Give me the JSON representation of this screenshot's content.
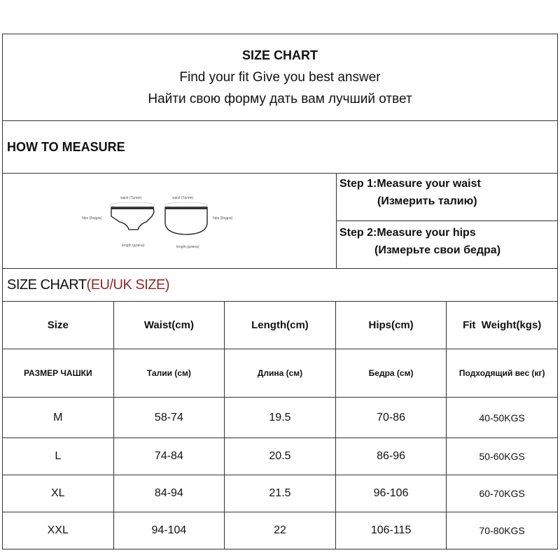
{
  "header": {
    "title": "SIZE CHART",
    "subtitle_en": "Find your fit Give you best answer",
    "subtitle_ru": "Найти свою форму дать вам лучший ответ"
  },
  "how_to_measure": {
    "title": "HOW TO MEASURE",
    "diagram_labels": {
      "waist": "waist (Талия)",
      "hips": "hips (Бедра)",
      "length": "length (длина)"
    },
    "steps": [
      {
        "en": "Step 1:Measure your waist",
        "ru": "(Измерить талию)"
      },
      {
        "en": "Step 2:Measure your hips",
        "ru": "(Измерьте свои бедра)"
      }
    ]
  },
  "size_chart": {
    "title": "SIZE CHART",
    "title_suffix": "(EU/UK SIZE)",
    "suffix_color": "#8b2b2b",
    "headers_en": [
      "Size",
      "Waist(cm)",
      "Length(cm)",
      "Hips(cm)",
      "Fit  Weight(kgs)"
    ],
    "headers_ru": [
      "РАЗМЕР ЧАШКИ",
      "Талии (см)",
      "Длина (см)",
      "Бедра (см)",
      "Подходящий вес (кг)"
    ],
    "rows": [
      [
        "M",
        "58-74",
        "19.5",
        "70-86",
        "40-50KGS"
      ],
      [
        "L",
        "74-84",
        "20.5",
        "86-96",
        "50-60KGS"
      ],
      [
        "XL",
        "84-94",
        "21.5",
        "96-106",
        "60-70KGS"
      ],
      [
        "XXL",
        "94-104",
        "22",
        "106-115",
        "70-80KGS"
      ]
    ]
  }
}
